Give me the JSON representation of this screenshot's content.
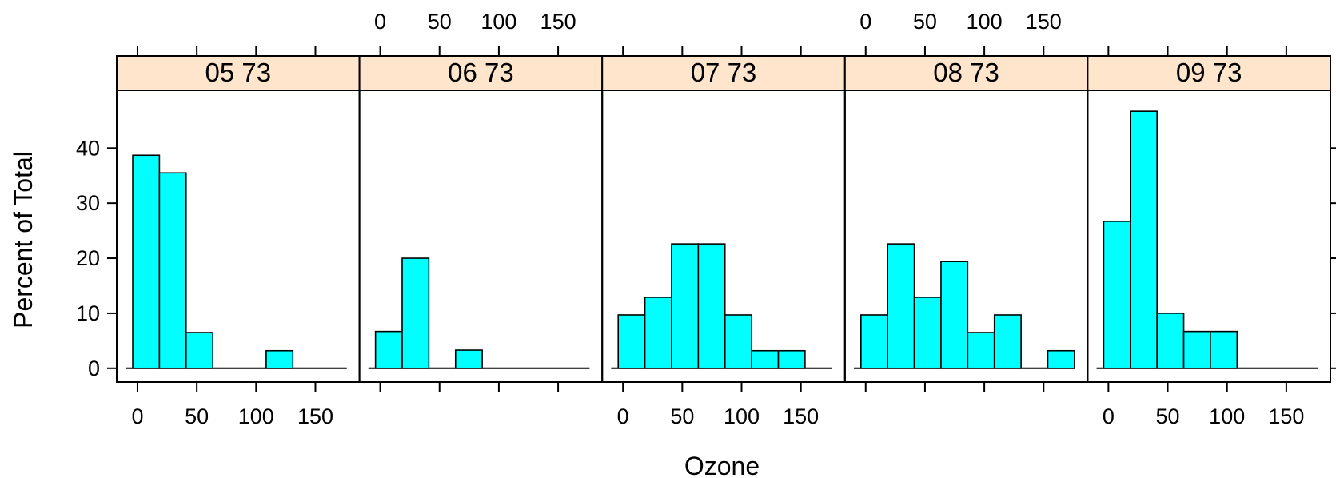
{
  "chart_data": {
    "type": "bar",
    "xlabel": "Ozone",
    "ylabel": "Percent of Total",
    "xlim": [
      -17.5,
      185
    ],
    "ylim": [
      -2.5,
      50.5
    ],
    "x_ticks": [
      0,
      50,
      100,
      150
    ],
    "y_ticks": [
      0,
      10,
      20,
      30,
      40
    ],
    "bin_edges": [
      -4,
      18.5,
      41,
      63.5,
      86,
      108.5,
      131,
      153.5,
      176
    ],
    "colors": {
      "bar_fill": "#00FFFF",
      "strip_bg": "#FFE5CC",
      "outline": "#000000"
    },
    "panels": [
      {
        "label": "05 73",
        "values": [
          38.7,
          35.5,
          6.5,
          0,
          0,
          3.2,
          0,
          0
        ]
      },
      {
        "label": "06 73",
        "values": [
          6.7,
          20.0,
          0,
          3.3,
          0,
          0,
          0,
          0
        ]
      },
      {
        "label": "07 73",
        "values": [
          9.7,
          12.9,
          22.6,
          22.6,
          9.7,
          3.2,
          3.2,
          0
        ]
      },
      {
        "label": "08 73",
        "values": [
          9.7,
          22.6,
          12.9,
          19.4,
          6.5,
          9.7,
          0,
          3.2
        ]
      },
      {
        "label": "09 73",
        "values": [
          26.7,
          46.7,
          10.0,
          6.7,
          6.7,
          0,
          0,
          0
        ]
      }
    ]
  }
}
